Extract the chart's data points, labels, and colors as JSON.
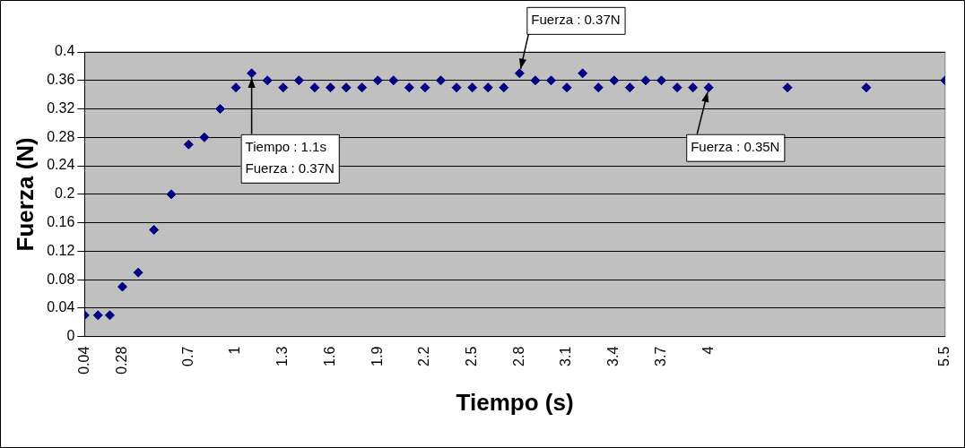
{
  "chart_data": {
    "type": "scatter",
    "xlabel": "Tiempo (s)",
    "ylabel": "Fuerza (N)",
    "x": [
      0.04,
      0.125,
      0.2,
      0.28,
      0.38,
      0.48,
      0.59,
      0.7,
      0.8,
      0.9,
      1.0,
      1.1,
      1.2,
      1.3,
      1.4,
      1.5,
      1.6,
      1.7,
      1.8,
      1.9,
      2.0,
      2.1,
      2.2,
      2.3,
      2.4,
      2.5,
      2.6,
      2.7,
      2.8,
      2.9,
      3.0,
      3.1,
      3.2,
      3.3,
      3.4,
      3.5,
      3.6,
      3.7,
      3.8,
      3.9,
      4.0,
      4.5,
      5.0,
      5.5
    ],
    "series": [
      {
        "color": "#000080",
        "values": [
          0.03,
          0.03,
          0.03,
          0.07,
          0.09,
          0.15,
          0.2,
          0.27,
          0.28,
          0.32,
          0.35,
          0.37,
          0.36,
          0.35,
          0.36,
          0.35,
          0.35,
          0.35,
          0.35,
          0.36,
          0.36,
          0.35,
          0.35,
          0.36,
          0.35,
          0.35,
          0.35,
          0.35,
          0.37,
          0.36,
          0.36,
          0.35,
          0.37,
          0.35,
          0.36,
          0.35,
          0.36,
          0.36,
          0.35,
          0.35,
          0.35,
          0.35,
          0.35,
          0.36
        ]
      }
    ],
    "xlim": [
      0.04,
      5.5
    ],
    "xticks": [
      0.04,
      0.28,
      0.7,
      1,
      1.3,
      1.6,
      1.9,
      2.2,
      2.5,
      2.8,
      3.1,
      3.4,
      3.7,
      4,
      5.5
    ],
    "ylim": [
      0,
      0.4
    ],
    "yticks": [
      0,
      0.04,
      0.08,
      0.12,
      0.16,
      0.2,
      0.24,
      0.28,
      0.32,
      0.36,
      0.4
    ],
    "grid": "y",
    "legend": false,
    "marker": "diamond",
    "annotations": [
      {
        "text": "Tiempo : 1.1s\nFuerza : 0.37N",
        "x": 1.1,
        "y": 0.37
      },
      {
        "text": "Fuerza : 0.37N",
        "x": 2.8,
        "y": 0.37
      },
      {
        "text": "Fuerza : 0.35N",
        "x": 4.0,
        "y": 0.35
      }
    ]
  }
}
